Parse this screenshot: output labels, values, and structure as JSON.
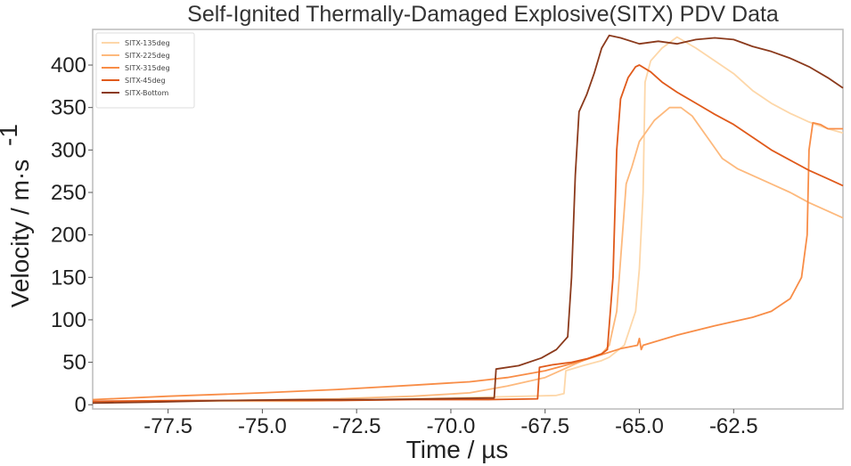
{
  "chart_data": {
    "type": "line",
    "title": "Self-Ignited Thermally-Damaged Explosive(SITX) PDV Data",
    "xlabel": "Time / µs",
    "ylabel": "Velocity / m·s",
    "ylabel_superscript": "-1",
    "xlim": [
      -79.5,
      -59.6
    ],
    "ylim": [
      -5,
      442
    ],
    "xticks": [
      "-77.5",
      "-75.0",
      "-72.5",
      "-70.0",
      "-67.5",
      "-65.0",
      "-62.5"
    ],
    "xtick_values": [
      -77.5,
      -75.0,
      -72.5,
      -70.0,
      -67.5,
      -65.0,
      -62.5
    ],
    "yticks": [
      "0",
      "50",
      "100",
      "150",
      "200",
      "250",
      "300",
      "350",
      "400"
    ],
    "ytick_values": [
      0,
      50,
      100,
      150,
      200,
      250,
      300,
      350,
      400
    ],
    "grid": false,
    "legend_position": "top-left",
    "series": [
      {
        "name": "SITX-135deg",
        "color": "#fdd7a9",
        "points": [
          [
            -79.5,
            4
          ],
          [
            -77.0,
            4
          ],
          [
            -74.0,
            4
          ],
          [
            -72.0,
            6
          ],
          [
            -70.0,
            8
          ],
          [
            -68.0,
            10
          ],
          [
            -67.2,
            11
          ],
          [
            -67.0,
            13
          ],
          [
            -66.95,
            40
          ],
          [
            -66.5,
            46
          ],
          [
            -66.0,
            52
          ],
          [
            -65.8,
            56
          ],
          [
            -65.4,
            70
          ],
          [
            -65.1,
            110
          ],
          [
            -65.0,
            160
          ],
          [
            -64.9,
            250
          ],
          [
            -64.85,
            380
          ],
          [
            -64.7,
            405
          ],
          [
            -64.4,
            420
          ],
          [
            -64.0,
            433
          ],
          [
            -63.5,
            420
          ],
          [
            -63.0,
            405
          ],
          [
            -62.5,
            390
          ],
          [
            -62.0,
            370
          ],
          [
            -61.5,
            355
          ],
          [
            -61.0,
            343
          ],
          [
            -60.5,
            333
          ],
          [
            -60.0,
            325
          ],
          [
            -59.6,
            320
          ]
        ]
      },
      {
        "name": "SITX-225deg",
        "color": "#fdb97d",
        "points": [
          [
            -79.5,
            3
          ],
          [
            -76.0,
            5
          ],
          [
            -73.0,
            7
          ],
          [
            -71.0,
            10
          ],
          [
            -69.5,
            14
          ],
          [
            -68.5,
            22
          ],
          [
            -67.5,
            32
          ],
          [
            -67.0,
            42
          ],
          [
            -66.5,
            52
          ],
          [
            -66.0,
            60
          ],
          [
            -65.8,
            70
          ],
          [
            -65.6,
            110
          ],
          [
            -65.45,
            200
          ],
          [
            -65.35,
            260
          ],
          [
            -65.2,
            280
          ],
          [
            -65.0,
            310
          ],
          [
            -64.6,
            335
          ],
          [
            -64.2,
            350
          ],
          [
            -63.9,
            350
          ],
          [
            -63.6,
            340
          ],
          [
            -63.2,
            315
          ],
          [
            -62.8,
            290
          ],
          [
            -62.4,
            278
          ],
          [
            -62.0,
            270
          ],
          [
            -61.5,
            260
          ],
          [
            -61.0,
            250
          ],
          [
            -60.5,
            238
          ],
          [
            -60.0,
            228
          ],
          [
            -59.6,
            220
          ]
        ]
      },
      {
        "name": "SITX-315deg",
        "color": "#f88d47",
        "points": [
          [
            -79.5,
            6
          ],
          [
            -77.5,
            10
          ],
          [
            -75.0,
            14
          ],
          [
            -73.0,
            18
          ],
          [
            -71.0,
            23
          ],
          [
            -69.5,
            27
          ],
          [
            -68.5,
            32
          ],
          [
            -67.5,
            40
          ],
          [
            -66.5,
            52
          ],
          [
            -65.5,
            66
          ],
          [
            -65.05,
            70
          ],
          [
            -65.0,
            78
          ],
          [
            -64.95,
            65
          ],
          [
            -64.9,
            70
          ],
          [
            -64.0,
            82
          ],
          [
            -63.0,
            93
          ],
          [
            -62.0,
            103
          ],
          [
            -61.5,
            110
          ],
          [
            -61.0,
            125
          ],
          [
            -60.7,
            150
          ],
          [
            -60.55,
            200
          ],
          [
            -60.5,
            300
          ],
          [
            -60.4,
            332
          ],
          [
            -60.2,
            330
          ],
          [
            -60.0,
            325
          ],
          [
            -59.6,
            325
          ]
        ]
      },
      {
        "name": "SITX-45deg",
        "color": "#e05a1b",
        "points": [
          [
            -79.5,
            4
          ],
          [
            -77.0,
            5
          ],
          [
            -75.0,
            5
          ],
          [
            -73.0,
            5
          ],
          [
            -71.0,
            6
          ],
          [
            -69.0,
            6
          ],
          [
            -67.7,
            7
          ],
          [
            -67.65,
            44
          ],
          [
            -67.3,
            47
          ],
          [
            -66.8,
            50
          ],
          [
            -66.4,
            54
          ],
          [
            -66.0,
            60
          ],
          [
            -65.85,
            65
          ],
          [
            -65.7,
            150
          ],
          [
            -65.6,
            300
          ],
          [
            -65.5,
            360
          ],
          [
            -65.3,
            385
          ],
          [
            -65.1,
            398
          ],
          [
            -65.0,
            400
          ],
          [
            -64.7,
            392
          ],
          [
            -64.4,
            380
          ],
          [
            -64.0,
            368
          ],
          [
            -63.5,
            355
          ],
          [
            -63.0,
            342
          ],
          [
            -62.5,
            330
          ],
          [
            -62.0,
            315
          ],
          [
            -61.5,
            300
          ],
          [
            -61.0,
            288
          ],
          [
            -60.5,
            276
          ],
          [
            -60.0,
            266
          ],
          [
            -59.6,
            258
          ]
        ]
      },
      {
        "name": "SITX-Bottom",
        "color": "#8b3a1c",
        "points": [
          [
            -79.5,
            2
          ],
          [
            -78.0,
            3
          ],
          [
            -76.0,
            5
          ],
          [
            -74.0,
            6
          ],
          [
            -72.0,
            6
          ],
          [
            -70.5,
            7
          ],
          [
            -68.85,
            8
          ],
          [
            -68.8,
            42
          ],
          [
            -68.2,
            46
          ],
          [
            -67.6,
            55
          ],
          [
            -67.2,
            65
          ],
          [
            -66.9,
            80
          ],
          [
            -66.8,
            150
          ],
          [
            -66.7,
            270
          ],
          [
            -66.6,
            345
          ],
          [
            -66.4,
            365
          ],
          [
            -66.2,
            390
          ],
          [
            -66.0,
            420
          ],
          [
            -65.8,
            435
          ],
          [
            -65.5,
            432
          ],
          [
            -65.0,
            425
          ],
          [
            -64.5,
            428
          ],
          [
            -64.0,
            425
          ],
          [
            -63.5,
            430
          ],
          [
            -63.0,
            432
          ],
          [
            -62.5,
            430
          ],
          [
            -62.0,
            422
          ],
          [
            -61.5,
            416
          ],
          [
            -61.0,
            408
          ],
          [
            -60.5,
            398
          ],
          [
            -60.0,
            385
          ],
          [
            -59.6,
            373
          ]
        ]
      }
    ]
  }
}
